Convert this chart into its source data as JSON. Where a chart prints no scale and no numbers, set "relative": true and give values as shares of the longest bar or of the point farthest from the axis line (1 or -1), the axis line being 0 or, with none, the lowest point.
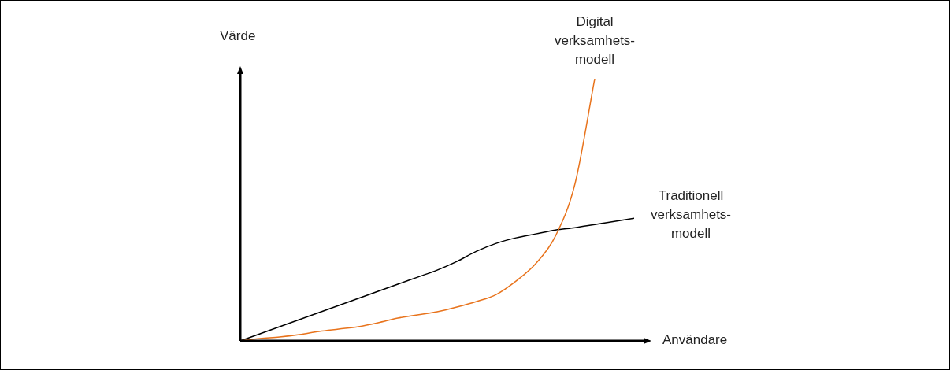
{
  "chart_data": {
    "type": "line",
    "relative": true,
    "xlabel": "Användare",
    "ylabel": "Värde",
    "categories": [
      null,
      null,
      null,
      null,
      null,
      null,
      null,
      null,
      null,
      null,
      null,
      null,
      null,
      null,
      null,
      null,
      null,
      null,
      null,
      null,
      null
    ],
    "series": [
      {
        "name": "Digital verksamhets-modell",
        "color": "#e8731c",
        "values": [
          0,
          0.009,
          0.015,
          0.024,
          0.036,
          0.045,
          0.054,
          0.069,
          0.087,
          0.099,
          0.111,
          0.129,
          0.15,
          0.177,
          0.228,
          0.294,
          0.399,
          0.6,
          1,
          null,
          null
        ]
      },
      {
        "name": "Traditionell verksamhets-modell",
        "color": "#000000",
        "values": [
          0,
          0.027,
          0.054,
          0.081,
          0.108,
          0.135,
          0.162,
          0.189,
          0.216,
          0.243,
          0.27,
          0.303,
          0.342,
          0.372,
          0.393,
          0.408,
          0.423,
          0.432,
          0.444,
          0.456,
          0.468
        ]
      }
    ]
  }
}
